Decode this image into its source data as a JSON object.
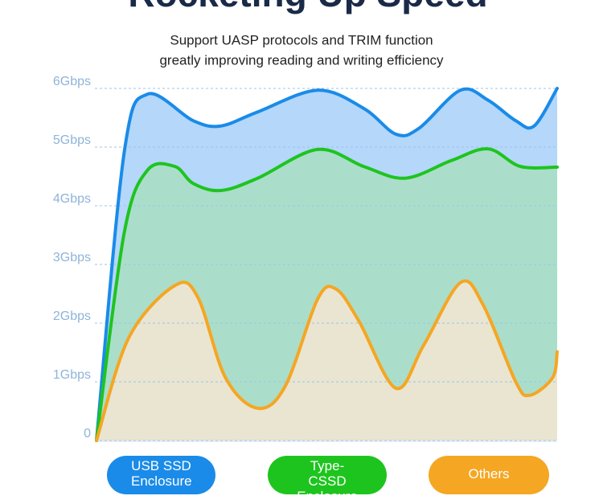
{
  "chart_data": {
    "type": "area",
    "title": "Rocketing Up Speed",
    "subtitle": [
      "Support UASP protocols and TRIM function",
      "greatly improving reading and writing efficiency"
    ],
    "ylim": [
      0,
      6
    ],
    "yticks": [
      0,
      {
        "value": 1,
        "label": "1Gbps"
      },
      {
        "value": 2,
        "label": "2Gbps"
      },
      {
        "value": 3,
        "label": "3Gbps"
      },
      {
        "value": 4,
        "label": "4Gbps"
      },
      {
        "value": 5,
        "label": "5Gbps"
      },
      {
        "value": 6,
        "label": "6Gbps"
      }
    ],
    "xlim": [
      0,
      100
    ],
    "grid": true,
    "series": [
      {
        "name": "USB SSD Enclosure",
        "color": "#1a8be8",
        "fill": "#acd3fa",
        "x": [
          0,
          6,
          11,
          21,
          27,
          35,
          48,
          58,
          65,
          70,
          79,
          85,
          91,
          95,
          100
        ],
        "values": [
          0,
          4.9,
          5.9,
          5.45,
          5.36,
          5.6,
          5.97,
          5.66,
          5.22,
          5.32,
          5.97,
          5.8,
          5.45,
          5.36,
          6
        ]
      },
      {
        "name": "Type-CSSD Enclosure",
        "color": "#1ec41e",
        "fill": "#a9dfc4",
        "x": [
          0,
          6,
          11,
          17,
          21,
          27,
          35,
          48,
          58,
          67,
          77,
          85,
          92,
          100
        ],
        "values": [
          0,
          3.53,
          4.6,
          4.67,
          4.38,
          4.26,
          4.47,
          4.96,
          4.67,
          4.47,
          4.77,
          4.97,
          4.67,
          4.66
        ]
      },
      {
        "name": "Others",
        "color": "#f5a623",
        "fill": "#efe6d2",
        "x": [
          0,
          7,
          17,
          22,
          28,
          35,
          41,
          48,
          52,
          57,
          65,
          71,
          79,
          84,
          91,
          94,
          99,
          100
        ],
        "values": [
          0,
          1.75,
          2.64,
          2.44,
          1.07,
          0.55,
          0.93,
          2.41,
          2.58,
          2.03,
          0.89,
          1.62,
          2.69,
          2.3,
          1.0,
          0.77,
          1.07,
          1.51
        ]
      }
    ]
  }
}
